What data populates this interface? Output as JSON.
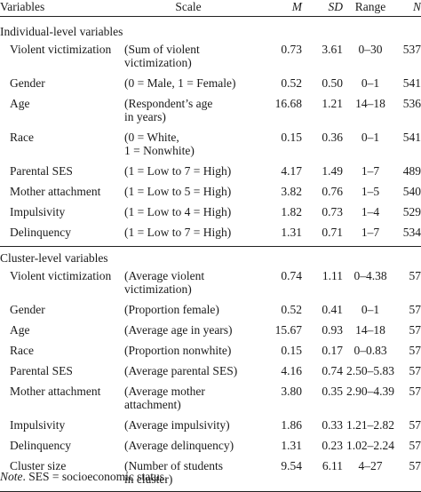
{
  "header": {
    "variables": "Variables",
    "scale": "Scale",
    "m": "M",
    "sd": "SD",
    "range": "Range",
    "n": "N"
  },
  "sections": [
    {
      "title": "Individual-level variables",
      "rows": [
        {
          "variable": "Violent victimization",
          "scale": "(Sum of violent\n victimization)",
          "m": "0.73",
          "sd": "3.61",
          "range": "0–30",
          "n": "537"
        },
        {
          "variable": "Gender",
          "scale": "(0 = Male, 1 = Female)",
          "m": "0.52",
          "sd": "0.50",
          "range": "0–1",
          "n": "541"
        },
        {
          "variable": "Age",
          "scale": "(Respondent’s age\n in years)",
          "m": "16.68",
          "sd": "1.21",
          "range": "14–18",
          "n": "536"
        },
        {
          "variable": "Race",
          "scale": "(0 = White,\n 1 = Nonwhite)",
          "m": "0.15",
          "sd": "0.36",
          "range": "0–1",
          "n": "541"
        },
        {
          "variable": "Parental SES",
          "scale": "(1 = Low to 7 = High)",
          "m": "4.17",
          "sd": "1.49",
          "range": "1–7",
          "n": "489"
        },
        {
          "variable": "Mother attachment",
          "scale": "(1 = Low to 5 = High)",
          "m": "3.82",
          "sd": "0.76",
          "range": "1–5",
          "n": "540"
        },
        {
          "variable": "Impulsivity",
          "scale": "(1 = Low to 4 = High)",
          "m": "1.82",
          "sd": "0.73",
          "range": "1–4",
          "n": "529"
        },
        {
          "variable": "Delinquency",
          "scale": "(1 = Low to 7 = High)",
          "m": "1.31",
          "sd": "0.71",
          "range": "1–7",
          "n": "534"
        }
      ]
    },
    {
      "title": "Cluster-level variables",
      "rows": [
        {
          "variable": "Violent victimization",
          "scale": "(Average violent\n victimization)",
          "m": "0.74",
          "sd": "1.11",
          "range": "0–4.38",
          "n": "57"
        },
        {
          "variable": "Gender",
          "scale": "(Proportion female)",
          "m": "0.52",
          "sd": "0.41",
          "range": "0–1",
          "n": "57"
        },
        {
          "variable": "Age",
          "scale": "(Average age in years)",
          "m": "15.67",
          "sd": "0.93",
          "range": "14–18",
          "n": "57"
        },
        {
          "variable": "Race",
          "scale": "(Proportion nonwhite)",
          "m": "0.15",
          "sd": "0.17",
          "range": "0–0.83",
          "n": "57"
        },
        {
          "variable": "Parental SES",
          "scale": "(Average parental SES)",
          "m": "4.16",
          "sd": "0.74",
          "range": "2.50–5.83",
          "n": "57"
        },
        {
          "variable": "Mother attachment",
          "scale": "(Average mother\n attachment)",
          "m": "3.80",
          "sd": "0.35",
          "range": "2.90–4.39",
          "n": "57"
        },
        {
          "variable": "Impulsivity",
          "scale": "(Average impulsivity)",
          "m": "1.86",
          "sd": "0.33",
          "range": "1.21–2.82",
          "n": "57"
        },
        {
          "variable": "Delinquency",
          "scale": "(Average delinquency)",
          "m": "1.31",
          "sd": "0.23",
          "range": "1.02–2.24",
          "n": "57"
        },
        {
          "variable": "Cluster size",
          "scale": "(Number of students\n in cluster)",
          "m": "9.54",
          "sd": "6.11",
          "range": "4–27",
          "n": "57"
        }
      ]
    }
  ],
  "note": {
    "label": "Note",
    "text": ". SES = socioeconomic status."
  }
}
